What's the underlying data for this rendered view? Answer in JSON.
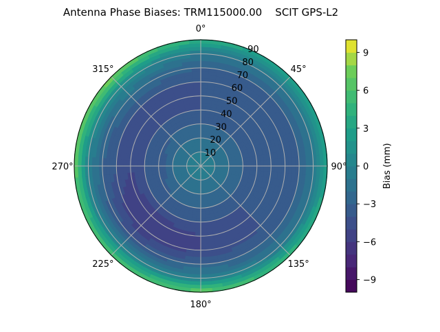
{
  "chart_data": {
    "type": "heatmap",
    "projection": "polar",
    "title": "Antenna Phase Biases: TRM115000.00    SCIT GPS-L2",
    "theta_direction": "clockwise",
    "theta_zero": "north",
    "theta_ticks": [
      "0°",
      "45°",
      "90°",
      "135°",
      "180°",
      "225°",
      "270°",
      "315°"
    ],
    "theta_tick_values": [
      0,
      45,
      90,
      135,
      180,
      225,
      270,
      315
    ],
    "r_ticks": [
      "10",
      "20",
      "30",
      "40",
      "50",
      "60",
      "70",
      "80",
      "90"
    ],
    "r_tick_values": [
      10,
      20,
      30,
      40,
      50,
      60,
      70,
      80,
      90
    ],
    "rlim": [
      0,
      90
    ],
    "grid": true,
    "colormap": "viridis",
    "colorbar": {
      "label": "Bias (mm)",
      "range": [
        -10,
        10
      ],
      "level_step": 1,
      "ticks": [
        "−9",
        "−6",
        "−3",
        "0",
        "3",
        "6",
        "9"
      ],
      "tick_values": [
        -9,
        -6,
        -3,
        0,
        3,
        6,
        9
      ]
    },
    "azimuths": [
      0,
      45,
      90,
      135,
      180,
      225,
      270,
      315
    ],
    "zeniths": [
      0,
      10,
      20,
      30,
      40,
      50,
      60,
      70,
      80,
      90
    ],
    "values": [
      [
        -1,
        -1,
        -2,
        -3,
        -4,
        -4,
        -4,
        -3,
        -1,
        4
      ],
      [
        -1,
        -1,
        -2,
        -3,
        -4,
        -4,
        -4,
        -3,
        -1,
        3
      ],
      [
        -1,
        -1,
        -2,
        -3,
        -3,
        -4,
        -4,
        -3,
        -1,
        3
      ],
      [
        -1,
        -1,
        -2,
        -3,
        -4,
        -4,
        -4,
        -3,
        -1,
        5
      ],
      [
        -1,
        -1,
        -2,
        -3,
        -4,
        -5,
        -5,
        -3,
        0,
        7
      ],
      [
        -1,
        -1,
        -2,
        -3,
        -4,
        -6,
        -6,
        -4,
        0,
        6
      ],
      [
        -1,
        -1,
        -2,
        -4,
        -4,
        -5,
        -4,
        -3,
        0,
        7
      ],
      [
        -1,
        -1,
        -2,
        -3,
        -4,
        -5,
        -4,
        -2,
        1,
        8
      ]
    ]
  }
}
